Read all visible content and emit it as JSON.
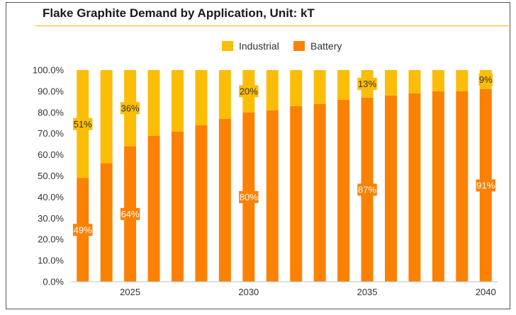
{
  "title": "Flake Graphite Demand by Application, Unit: kT",
  "colors": {
    "battery": "#fb8105",
    "industrial": "#fcbd07",
    "title_rule": "#f0b400"
  },
  "chart_data": {
    "type": "bar",
    "stacked": true,
    "x": [
      2023,
      2024,
      2025,
      2026,
      2027,
      2028,
      2029,
      2030,
      2031,
      2032,
      2033,
      2034,
      2035,
      2036,
      2037,
      2038,
      2039,
      2040
    ],
    "x_tick_labels": [
      "2025",
      "2030",
      "2035",
      "2040"
    ],
    "y_tick_labels": [
      "0.0%",
      "10.0%",
      "20.0%",
      "30.0%",
      "40.0%",
      "50.0%",
      "60.0%",
      "70.0%",
      "80.0%",
      "90.0%",
      "100.0%"
    ],
    "ylim": [
      0,
      100
    ],
    "legend": [
      "Industrial",
      "Battery"
    ],
    "legend_position": "top-center",
    "series": [
      {
        "name": "Battery",
        "color": "#fb8105",
        "values": [
          49,
          56,
          64,
          69,
          71,
          74,
          77,
          80,
          81,
          83,
          84,
          86,
          87,
          88,
          89,
          90,
          90,
          91
        ]
      },
      {
        "name": "Industrial",
        "color": "#fcbd07",
        "values": [
          51,
          44,
          36,
          31,
          29,
          26,
          23,
          20,
          19,
          17,
          16,
          14,
          13,
          12,
          11,
          10,
          10,
          9
        ]
      }
    ],
    "data_labels": [
      {
        "series": "Industrial",
        "x": 2023,
        "text": "51%"
      },
      {
        "series": "Battery",
        "x": 2023,
        "text": "49%"
      },
      {
        "series": "Industrial",
        "x": 2025,
        "text": "36%"
      },
      {
        "series": "Battery",
        "x": 2025,
        "text": "64%"
      },
      {
        "series": "Industrial",
        "x": 2030,
        "text": "20%"
      },
      {
        "series": "Battery",
        "x": 2030,
        "text": "80%"
      },
      {
        "series": "Industrial",
        "x": 2035,
        "text": "13%"
      },
      {
        "series": "Battery",
        "x": 2035,
        "text": "87%"
      },
      {
        "series": "Industrial",
        "x": 2040,
        "text": "9%"
      },
      {
        "series": "Battery",
        "x": 2040,
        "text": "91%"
      }
    ]
  }
}
